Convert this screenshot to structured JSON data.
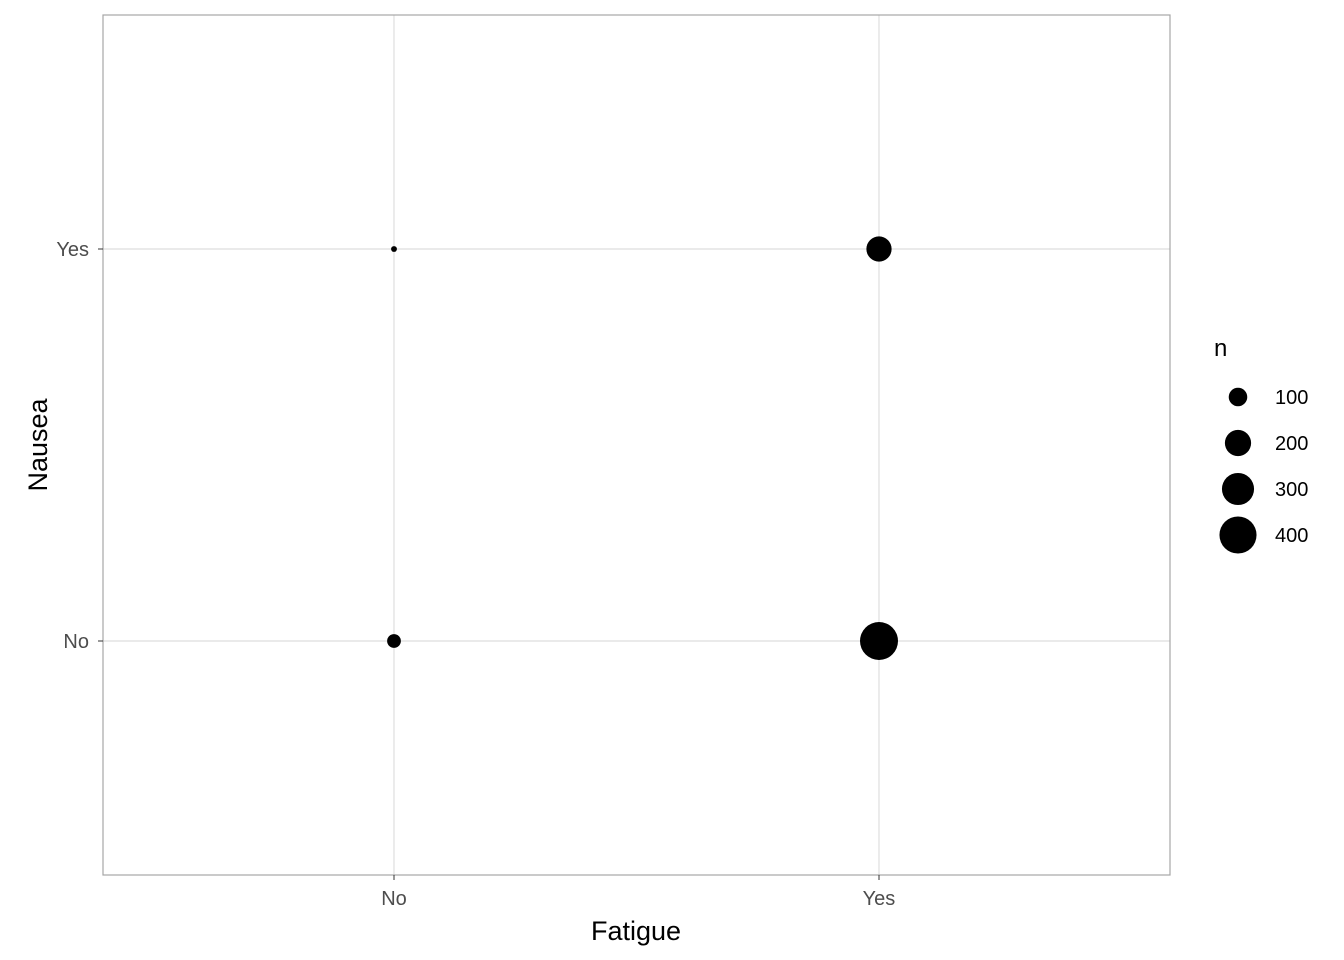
{
  "chart_data": {
    "type": "scatter",
    "title": "",
    "xlabel": "Fatigue",
    "ylabel": "Nausea",
    "x_categories": [
      "No",
      "Yes"
    ],
    "y_categories": [
      "No",
      "Yes"
    ],
    "size_variable": "n",
    "points": [
      {
        "x": "No",
        "y": "Yes",
        "n": 10
      },
      {
        "x": "No",
        "y": "No",
        "n": 55
      },
      {
        "x": "Yes",
        "y": "Yes",
        "n": 185
      },
      {
        "x": "Yes",
        "y": "No",
        "n": 420
      }
    ],
    "legend": {
      "title": "n",
      "position": "right",
      "breaks": [
        100,
        200,
        300,
        400
      ]
    },
    "grid": true,
    "colors": {
      "point": "#000000",
      "grid": "#dedede",
      "panel_border": "#a6a6a6",
      "tick_text": "#4d4d4d"
    }
  }
}
